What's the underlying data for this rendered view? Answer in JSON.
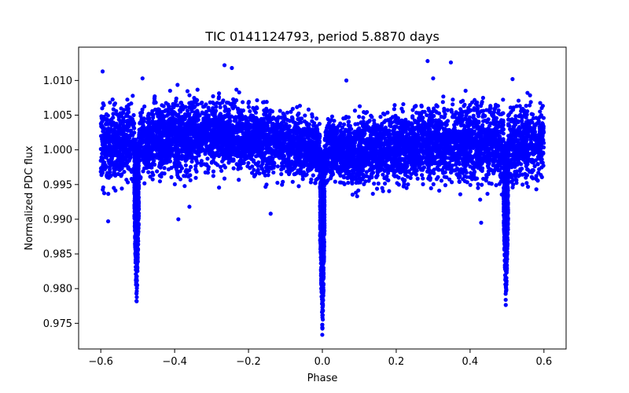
{
  "chart_data": {
    "type": "scatter",
    "title": "TIC 0141124793, period 5.8870 days",
    "xlabel": "Phase",
    "ylabel": "Normalized PDC flux",
    "xlim": [
      -0.66,
      0.66
    ],
    "ylim": [
      0.9713,
      1.0148
    ],
    "grid": false,
    "legend": "none",
    "marker_color": "#0000ff",
    "x_ticks": [
      -0.6,
      -0.4,
      -0.2,
      0.0,
      0.2,
      0.4,
      0.6
    ],
    "x_tick_labels": [
      "−0.6",
      "−0.4",
      "−0.2",
      "0.0",
      "0.2",
      "0.4",
      "0.6"
    ],
    "y_ticks": [
      0.975,
      0.98,
      0.985,
      0.99,
      0.995,
      1.0,
      1.005,
      1.01
    ],
    "y_tick_labels": [
      "0.975",
      "0.980",
      "0.985",
      "0.990",
      "0.995",
      "1.000",
      "1.005",
      "1.010"
    ],
    "phase_range": [
      -0.6,
      0.6
    ],
    "dips": [
      {
        "phase": -0.503,
        "min_flux": 0.9772
      },
      {
        "phase": 0.0,
        "min_flux": 0.9728
      },
      {
        "phase": 0.497,
        "min_flux": 0.9772
      }
    ],
    "baseline_band": [
      {
        "phase": -0.6,
        "low": 0.9925,
        "high": 1.0085
      },
      {
        "phase": -0.5,
        "low": 0.9935,
        "high": 1.009
      },
      {
        "phase": -0.3,
        "low": 0.995,
        "high": 1.0095
      },
      {
        "phase": -0.1,
        "low": 0.9945,
        "high": 1.0075
      },
      {
        "phase": 0.0,
        "low": 0.994,
        "high": 1.006
      },
      {
        "phase": 0.1,
        "low": 0.993,
        "high": 1.0065
      },
      {
        "phase": 0.3,
        "low": 0.9935,
        "high": 1.0085
      },
      {
        "phase": 0.5,
        "low": 0.9925,
        "high": 1.009
      },
      {
        "phase": 0.6,
        "low": 0.994,
        "high": 1.0085
      }
    ],
    "outliers": [
      {
        "x": -0.595,
        "y": 1.0113
      },
      {
        "x": -0.58,
        "y": 0.9897
      },
      {
        "x": -0.487,
        "y": 1.0103
      },
      {
        "x": -0.39,
        "y": 0.99
      },
      {
        "x": -0.36,
        "y": 0.9918
      },
      {
        "x": -0.265,
        "y": 1.0122
      },
      {
        "x": -0.245,
        "y": 1.0118
      },
      {
        "x": -0.14,
        "y": 0.9908
      },
      {
        "x": 0.065,
        "y": 1.01
      },
      {
        "x": 0.285,
        "y": 1.0128
      },
      {
        "x": 0.3,
        "y": 1.0103
      },
      {
        "x": 0.348,
        "y": 1.0126
      },
      {
        "x": 0.43,
        "y": 0.9895
      },
      {
        "x": 0.515,
        "y": 1.0102
      }
    ]
  }
}
